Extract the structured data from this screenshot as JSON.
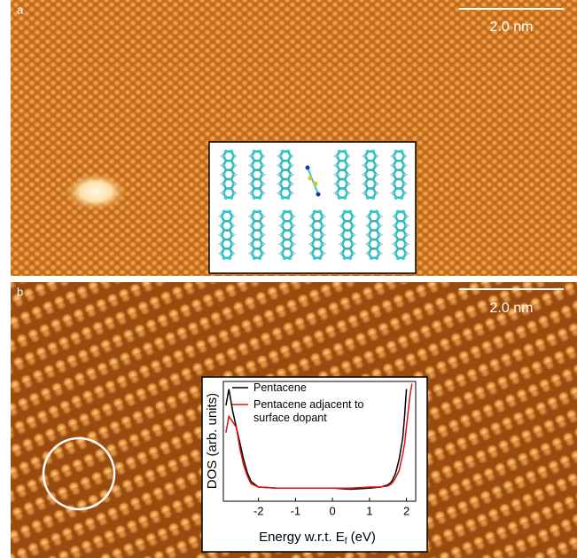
{
  "panels": [
    {
      "label": "a",
      "scale_bar": "2.0 nm"
    },
    {
      "label": "b",
      "scale_bar": "2.0 nm"
    }
  ],
  "chart_data": {
    "type": "line",
    "y_label": "DOS (arb. units)",
    "x_label": {
      "text": "Energy w.r.t. E",
      "subscript": "f",
      "suffix": "(eV)"
    },
    "x": [
      -2.88,
      -2.8,
      -2.7,
      -2.6,
      -2.5,
      -2.4,
      -2.3,
      -2.2,
      -2,
      -1.5,
      -1,
      -0.5,
      0,
      0.5,
      1,
      1.3,
      1.5,
      1.6,
      1.7,
      1.8,
      1.9,
      1.95,
      2.0,
      2.05,
      2.1,
      2.15
    ],
    "series": [
      {
        "name": "Pentacene",
        "color": "#000000",
        "values": [
          0.8,
          0.95,
          0.75,
          0.6,
          0.45,
          0.3,
          0.18,
          0.1,
          0.05,
          0.04,
          0.04,
          0.04,
          0.04,
          0.03,
          0.04,
          0.05,
          0.07,
          0.1,
          0.17,
          0.3,
          0.5,
          0.7,
          0.95,
          null,
          null,
          null
        ]
      },
      {
        "name": "Pentacene adjacent to surface dopant",
        "color": "#e01010",
        "values": [
          0.55,
          0.7,
          0.65,
          0.6,
          0.4,
          0.25,
          0.15,
          0.08,
          0.05,
          0.04,
          0.04,
          0.04,
          0.04,
          0.04,
          0.05,
          0.05,
          0.06,
          0.08,
          0.13,
          0.2,
          0.35,
          0.45,
          0.6,
          0.75,
          0.9,
          1.0
        ]
      }
    ],
    "xlim": [
      -2.95,
      2.25
    ],
    "ylim": [
      -0.08,
      1.02
    ],
    "xticks": [
      -2,
      -1,
      0,
      1,
      2
    ]
  }
}
